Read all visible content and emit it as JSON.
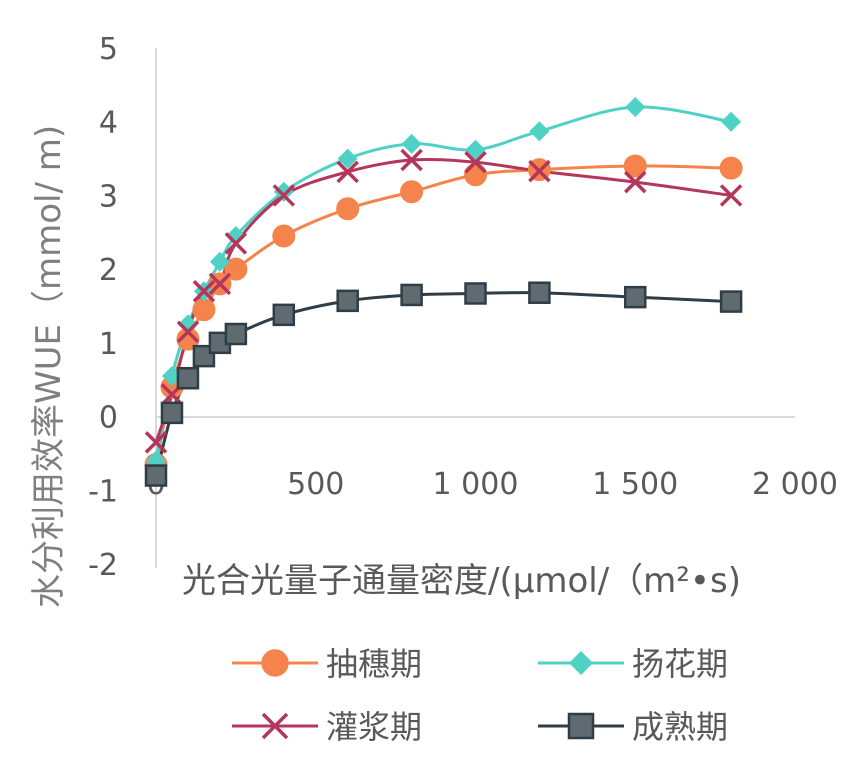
{
  "chart_data": {
    "type": "line",
    "xlabel": "光合光量子通量密度/(μmol/（m²•s)",
    "ylabel": "水分利用效率WUE（mmol/ m)",
    "xlim": [
      0,
      2000
    ],
    "ylim": [
      -2,
      5
    ],
    "x_ticks": [
      "0",
      "500",
      "1 000",
      "1 500",
      "2 000"
    ],
    "y_ticks": [
      "-2",
      "-1",
      "0",
      "1",
      "2",
      "3",
      "4",
      "5"
    ],
    "grid": false,
    "legend_position": "bottom",
    "x": [
      0,
      50,
      100,
      150,
      200,
      250,
      400,
      600,
      800,
      1000,
      1200,
      1500,
      1800
    ],
    "series": [
      {
        "name": "抽穗期",
        "color": "#f4844c",
        "marker": "circle",
        "values": [
          -0.65,
          0.4,
          1.05,
          1.45,
          1.8,
          2.0,
          2.45,
          2.82,
          3.05,
          3.28,
          3.35,
          3.4,
          3.37
        ]
      },
      {
        "name": "扬花期",
        "color": "#4fd1c5",
        "marker": "diamond",
        "values": [
          -0.6,
          0.55,
          1.25,
          1.7,
          2.1,
          2.45,
          3.05,
          3.5,
          3.7,
          3.62,
          3.87,
          4.2,
          4.0
        ]
      },
      {
        "name": "灌浆期",
        "color": "#b5365b",
        "marker": "x",
        "values": [
          -0.35,
          0.3,
          1.15,
          1.7,
          1.8,
          2.35,
          3.0,
          3.32,
          3.48,
          3.45,
          3.33,
          3.18,
          3.0
        ]
      },
      {
        "name": "成熟期",
        "color": "#2f3e46",
        "marker": "square",
        "values": [
          -0.8,
          0.05,
          0.52,
          0.82,
          1.0,
          1.12,
          1.38,
          1.57,
          1.65,
          1.67,
          1.68,
          1.62,
          1.56
        ]
      }
    ]
  }
}
